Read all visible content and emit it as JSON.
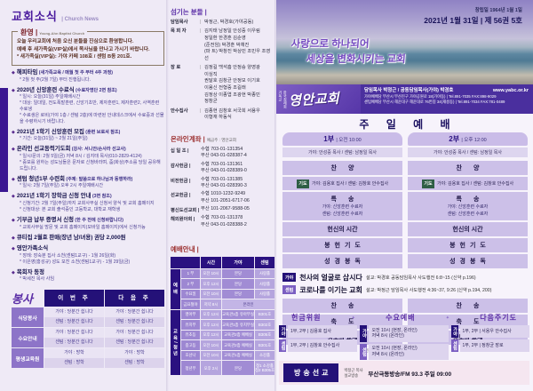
{
  "colors": {
    "brand_purple": "#4a2f9e",
    "deep_navy": "#241178",
    "maroon": "#7c2128",
    "prayer_green": "#2e5e45",
    "light_purple": "#ccc0e8"
  },
  "left": {
    "title": "교회소식",
    "title_en": "| Church News",
    "welcome": {
      "label": "환영 |",
      "label_en": "Young-Ahn Baptist Church",
      "lines": [
        "오늘 우리교회에 처음 오신 분들을 진심으로 환영합니다.",
        "예배 후 새가족실(VIP실)에서 목사님을 만나고 가시기 바랍니다.",
        "* 새가족실(VIP실): 가야 카페 108호 / 센텀 B동 201호."
      ]
    },
    "items": [
      {
        "title": "해피타임",
        "sub": "(새가족교육 / 매월 첫 주 부터 4주 과정)",
        "notes": [
          "* 2월 첫 주(2월 7일) 부터 진행됩니다."
        ]
      },
      {
        "title": "2020년 신앙훈련 수료식",
        "sub": "(수료자명단 2면 참조)",
        "notes": [
          "* 일시: 오늘(31일) 주일예배시간",
          "* 대상: 일대일, 전도폭발훈련, 신앙기초반, 제자훈련1, 제자훈련2, 사역훈련 수료생",
          "* 수료생은 로비(가야 1층 / 센텀 2층)에 마련된 안내데스크에서 수료증과 선물을 수령하시기 바랍니다."
        ]
      },
      {
        "title": "2021년 1학기 신앙훈련 모집",
        "sub": "(훈련 브로셔 참조)",
        "notes": [
          "* 기간: 오늘(31일) ~ 2월 21일(주일)"
        ]
      },
      {
        "title": "온라인 선교동력기도회",
        "sub": "(강사: 서니안/손사라 선교사)",
        "notes": [
          "* 일시/문의: 2월 5일(금) 저녁 8시 / 김지태 목사(010-2829-4124)",
          "* 중보를 원하는 성도님들은 문자로 신청바라며, 줌(화상)주소를 당일 공유해드립니다."
        ]
      },
      {
        "title": "센텀 청년1부 수련회",
        "sub": "(주제: 말씀으로 하나님과 동행하라)",
        "notes": [
          "* 일시: 2월 7일(주일) 오후 2시 주일예배시간"
        ]
      },
      {
        "title": "2021년 1학기 장학금 신청 안내",
        "sub": "(3면 참조)",
        "notes": [
          "* 신청기간: 2월 7일(주일)까지 교회사무실 신청서 양식 및 교회 홈페이지",
          "* 신청대상: 본 교회 출석중인 고등학교, 대학교 재학생"
        ]
      },
      {
        "title": "기부금 납부 증명서 신청",
        "sub": "(한 주 전에 신청바랍니다)",
        "notes": [
          "* 교회사무실 방문 및 교회 홈페이지(모바일 홈페이지)에서 신청가능"
        ]
      },
      {
        "title": "큐티집 2월호 판매(장년 남/녀용) 권당 2,000원",
        "sub": "",
        "notes": []
      },
      {
        "title": "영안가족소식",
        "sub": "",
        "notes": [
          "* 장례: 장숙분 집사 소천(센텀1교구) - 1월 26일(화)",
          "* 이은영(홍성규) 성도 모친 소천(센텀1교구) - 1월 29일(금)"
        ]
      },
      {
        "title": "목회자 동정",
        "sub": "",
        "notes": [
          "* 박세진 목사 사임"
        ]
      }
    ],
    "service": {
      "title": "봉사",
      "columns": [
        "이 번 주",
        "다 음 주"
      ],
      "rows": [
        {
          "label": "식당봉사",
          "this_week": [
            "가야 : 당분간 쉽니다",
            "센텀 : 당분간 쉽니다"
          ],
          "next_week": [
            "가야 : 당분간 쉽니다",
            "센텀 : 당분간 쉽니다"
          ]
        },
        {
          "label": "수요안내",
          "this_week": [
            "가야 : 당분간 쉽니다",
            "센텀 : 당분간 쉽니다"
          ],
          "next_week": [
            "가야 : 당분간 쉽니다",
            "센텀 : 당분간 쉽니다"
          ]
        },
        {
          "label": "평생교육원",
          "this_week": [
            "가야 : 방학",
            "센텀 : 방학"
          ],
          "next_week": [
            "가야 : 방학",
            "센텀 : 방학"
          ]
        }
      ]
    }
  },
  "middle": {
    "servants": {
      "title": "섬기는 분들 |",
      "rows": [
        {
          "role": "담임목사",
          "lines": [
            "박정근, 박경호(가야공동)"
          ]
        },
        {
          "role": "목 회 자",
          "lines": [
            "김지태 남정일 안성중 이우림",
            "정일환 한경훈 김순영",
            "(준전임) 박경훈 박채진",
            "(파 트) 박창진 박상민 조민우 조영선"
          ]
        },
        {
          "role": "장    로",
          "lines": [
            "김정길 백석흠 안정승 양영광",
            "이심직",
            "권달호 김창균 안정모 이기호",
            "이용신 전형중 조길래",
            "김정상 이종엽 조광현 박종민",
            "정창균"
          ]
        },
        {
          "role": "안수집사",
          "lines": [
            "김종현 김창호 서국희 서용우",
            "이형재 하동식"
          ]
        }
      ]
    },
    "accounts": {
      "title": "온라인계좌 |",
      "subtitle": "예금주 : 영안교회",
      "rows": [
        {
          "name": "십 일 조",
          "lines": [
            "수협  703-01-131354",
            "부산  043-01-028387-4"
          ]
        },
        {
          "name": "감사헌금",
          "lines": [
            "수협  703-01-131361",
            "부산  043-01-028389-0"
          ]
        },
        {
          "name": "비전헌금",
          "lines": [
            "수협  703-01-131385",
            "부산  043-01-028390-3"
          ]
        },
        {
          "name": "선교헌금",
          "lines": [
            "수협  1010-1232-9249",
            "부산  101-2051-6717-06"
          ]
        },
        {
          "name": "평신도선교회",
          "lines": [
            "부산  101-2067-9588-05"
          ]
        },
        {
          "name": "해외원아회",
          "lines": [
            "수협  703-01-131378",
            "부산  043-01-028388-2"
          ]
        }
      ]
    },
    "schedule": {
      "title": "예배안내 |",
      "cols": [
        "시간",
        "가야",
        "센텀"
      ],
      "groups": [
        {
          "name": "예배",
          "rows": [
            {
              "label": "1 부",
              "time": "오전 10시",
              "gaya": "본당",
              "centum": "사랑홀"
            },
            {
              "label": "2 부",
              "time": "오후 12시",
              "gaya": "본당",
              "centum": "사랑홀"
            },
            {
              "label": "수요일",
              "time": "오전 10시",
              "gaya": "본당",
              "centum": "사랑홀"
            },
            {
              "label": "금요철야",
              "time": "저녁 8시",
              "span": "온라인"
            }
          ]
        },
        {
          "name": "교육/청년",
          "rows": [
            {
              "label": "영아부",
              "time": "오후 12시",
              "gaya": "교육관1층 유아부실",
              "centum": "B301호"
            },
            {
              "label": "유치부",
              "time": "오후 12시",
              "gaya": "교육관1층 유치부실",
              "centum": "B302호"
            },
            {
              "label": "유초등",
              "time": "오후 12시",
              "gaya": "교육관2층 예배실",
              "centum": "B305호"
            },
            {
              "label": "중고등",
              "time": "오전 10시",
              "gaya": "교육관2층 예배실",
              "centum": "B301호"
            },
            {
              "label": "호산나",
              "time": "오전 10시",
              "gaya": "교육관1층 예배실",
              "centum": "소강홀"
            },
            {
              "label": "청년부",
              "time": "오후 2시",
              "gaya": "본당",
              "centum": [
                "청1 소강홀",
                "청2 B305호"
              ]
            }
          ]
        }
      ]
    }
  },
  "right": {
    "founded": "창립일  1964년  1월  1일",
    "issue": "2021년  1월  31일 | 제 56권 5호",
    "slogan1": "사랑으로 하나되어",
    "slogan2": "세상을 변화시키는 교회",
    "logo": {
      "denom1": "기독교",
      "denom2": "한국침례회",
      "church": "영안교회",
      "pastors": "담임목사 박정근 / 공동담임목사(가야) 박경호",
      "addr1": "가야예배당 부산시 부산진구 가야공원로 18(가야동) | Tel.891-7035 FAX:898-9029",
      "addr2": "센텀예배당 부산시 해운대구 해운대로 76번길 34(재송동) | Tel.891-7034 FAX:781-0489",
      "web": "www.yabc.or.kr"
    },
    "worship_title": "주 일 예 배",
    "parts": [
      {
        "name": "1부",
        "time": "| 오전 10:00",
        "leaders": "가야: 안성중 목사 / 센텀: 남정일 목사"
      },
      {
        "name": "2부",
        "time": "| 오후 12:00",
        "leaders": "가야: 안성중 목사 / 센텀: 남정일 목사"
      }
    ],
    "order_top": [
      {
        "label": "찬양"
      },
      {
        "badge": "기도",
        "text": "가야: 김용호 집사 / 센텀: 김창호 안수집사"
      },
      {
        "label": "특송",
        "notes": [
          "가야: 신앙훈련 수료자",
          "센텀: 신앙훈련 수료자"
        ]
      },
      {
        "label": "헌신의 시간"
      },
      {
        "label": "봉헌기도"
      },
      {
        "label": "성경봉독"
      }
    ],
    "sermons": [
      {
        "badge": "가야",
        "title": "천사의 얼굴로 삽시다",
        "detail": "설교: 박경호 공동담임목사  사도행전 6:8~15 (신약 p.196)"
      },
      {
        "badge": "센텀",
        "title": "코로나를 이기는 교회",
        "detail": "설교: 박정근 담임목사  사도행전 4:36~37, 9:26 (신약 p.194, 200)"
      }
    ],
    "order_bottom": [
      {
        "label": "찬송"
      },
      {
        "label": "축도"
      },
      {
        "label": "성도의 교제"
      }
    ],
    "note": "※헌금은 들어오시면서 미리 헌금함에 넣어 주십시오.",
    "offering": {
      "headers": [
        "헌금위원",
        "수요예배",
        "다음주기도"
      ],
      "groups": [
        [
          {
            "badge": "가야",
            "lines": [
              "1부, 2부 | 김용호 집사"
            ]
          },
          {
            "badge": "센텀",
            "lines": [
              "1부, 2부 | 김창호 안수집사"
            ]
          }
        ],
        [
          {
            "badge": "가야",
            "lines": [
              "오전 10시 (현장, 온라인)",
              "저녁 8시 (온라인)"
            ]
          },
          {
            "badge": "센텀",
            "lines": [
              "오전 10시 (현장, 온라인)",
              "저녁 8시 (온라인)"
            ]
          }
        ],
        [
          {
            "badge": "가야",
            "lines": [
              "1부, 2부 | 서용우 안수집사"
            ]
          },
          {
            "badge": "센텀",
            "lines": [
              "1부, 2부 | 정창균 장로"
            ]
          }
        ]
      ]
    },
    "broadcast": {
      "label": "방송선교",
      "sub_lines": [
        "박정근 목사",
        "설교방송"
      ],
      "text": "부산극동방송/FM 93.3 주일 09:00"
    }
  }
}
